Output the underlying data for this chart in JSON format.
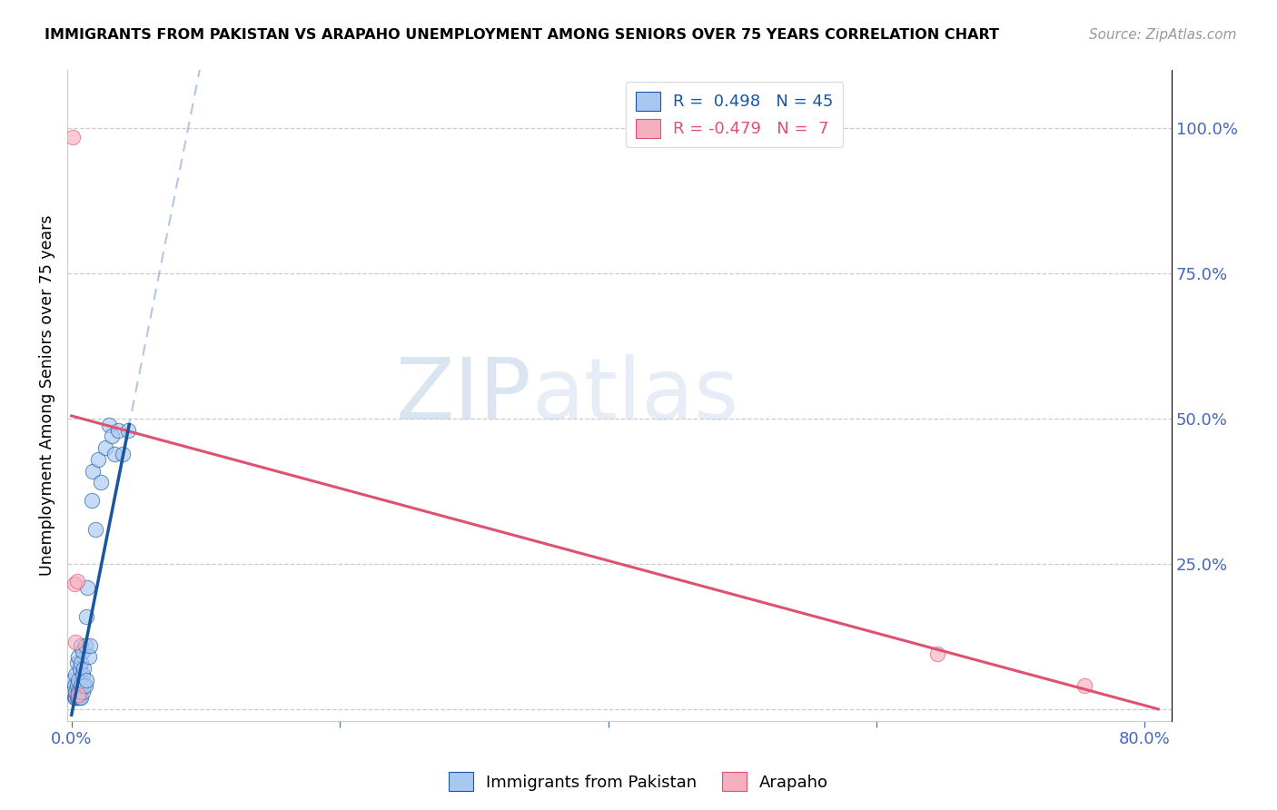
{
  "title": "IMMIGRANTS FROM PAKISTAN VS ARAPAHO UNEMPLOYMENT AMONG SENIORS OVER 75 YEARS CORRELATION CHART",
  "source": "Source: ZipAtlas.com",
  "ylabel": "Unemployment Among Seniors over 75 years",
  "xlim": [
    -0.003,
    0.82
  ],
  "ylim": [
    -0.02,
    1.1
  ],
  "blue_scatter_x": [
    0.001,
    0.001,
    0.002,
    0.002,
    0.003,
    0.003,
    0.003,
    0.004,
    0.004,
    0.004,
    0.005,
    0.005,
    0.005,
    0.005,
    0.006,
    0.006,
    0.006,
    0.007,
    0.007,
    0.007,
    0.007,
    0.008,
    0.008,
    0.008,
    0.009,
    0.009,
    0.01,
    0.01,
    0.011,
    0.011,
    0.012,
    0.013,
    0.014,
    0.015,
    0.016,
    0.018,
    0.02,
    0.022,
    0.025,
    0.028,
    0.03,
    0.032,
    0.035,
    0.038,
    0.042
  ],
  "blue_scatter_y": [
    0.03,
    0.05,
    0.02,
    0.04,
    0.02,
    0.03,
    0.06,
    0.02,
    0.04,
    0.08,
    0.02,
    0.03,
    0.05,
    0.09,
    0.02,
    0.03,
    0.07,
    0.02,
    0.04,
    0.08,
    0.11,
    0.03,
    0.06,
    0.1,
    0.04,
    0.07,
    0.04,
    0.11,
    0.05,
    0.16,
    0.21,
    0.09,
    0.11,
    0.36,
    0.41,
    0.31,
    0.43,
    0.39,
    0.45,
    0.49,
    0.47,
    0.44,
    0.48,
    0.44,
    0.48
  ],
  "pink_scatter_x": [
    0.001,
    0.002,
    0.003,
    0.004,
    0.005,
    0.645,
    0.755
  ],
  "pink_scatter_y": [
    0.985,
    0.215,
    0.115,
    0.22,
    0.025,
    0.095,
    0.04
  ],
  "blue_color": "#A8C8F0",
  "blue_line_color": "#1A55A0",
  "blue_dash_color": "#90B0D8",
  "pink_color": "#F5B0C0",
  "pink_line_color": "#E05070",
  "legend_R_blue": "0.498",
  "legend_N_blue": "45",
  "legend_R_pink": "-0.479",
  "legend_N_pink": "7",
  "watermark_zip": "ZIP",
  "watermark_atlas": "atlas",
  "background_color": "#ffffff",
  "grid_color": "#cccccc",
  "tick_color": "#4466BB",
  "title_fontsize": 11.5,
  "source_fontsize": 11
}
